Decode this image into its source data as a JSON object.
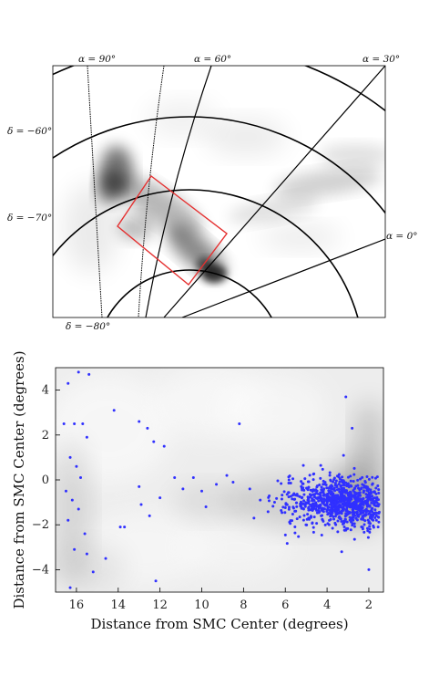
{
  "chart_data": [
    {
      "type": "map",
      "projection_labels": {
        "ra": [
          "α = 90°",
          "α = 60°",
          "α = 30°",
          "α = 0°"
        ],
        "dec": [
          "δ = −60°",
          "δ = −70°",
          "δ = −80°"
        ]
      },
      "colors": {
        "density": "#000000",
        "selection_box": "#e53030",
        "grid": "#000000"
      }
    },
    {
      "type": "scatter",
      "xlabel": "Distance from SMC Center (degrees)",
      "ylabel": "Distance from SMC Center (degrees)",
      "xlim": [
        17,
        1.3
      ],
      "ylim": [
        -5,
        5
      ],
      "x_inverted": true,
      "xticks": [
        16,
        14,
        12,
        10,
        8,
        6,
        4,
        2
      ],
      "yticks": [
        -4,
        -2,
        0,
        2,
        4
      ],
      "background": "grayscale density contours",
      "point_color": "#3030ff",
      "sparse_points": [
        [
          16.4,
          4.3
        ],
        [
          15.9,
          4.8
        ],
        [
          15.4,
          4.7
        ],
        [
          16.6,
          2.5
        ],
        [
          16.1,
          2.5
        ],
        [
          15.7,
          2.5
        ],
        [
          15.5,
          1.9
        ],
        [
          14.2,
          3.1
        ],
        [
          13.0,
          2.6
        ],
        [
          12.6,
          2.3
        ],
        [
          12.3,
          1.7
        ],
        [
          11.8,
          1.5
        ],
        [
          16.3,
          1.0
        ],
        [
          16.0,
          0.6
        ],
        [
          15.8,
          0.1
        ],
        [
          16.5,
          -0.5
        ],
        [
          16.2,
          -0.9
        ],
        [
          15.9,
          -1.3
        ],
        [
          16.4,
          -1.8
        ],
        [
          15.6,
          -2.4
        ],
        [
          16.1,
          -3.1
        ],
        [
          15.5,
          -3.3
        ],
        [
          16.3,
          -4.8
        ],
        [
          15.2,
          -4.1
        ],
        [
          13.9,
          -2.1
        ],
        [
          13.7,
          -2.1
        ],
        [
          13.0,
          -0.3
        ],
        [
          12.9,
          -1.1
        ],
        [
          12.5,
          -1.6
        ],
        [
          12.0,
          -0.8
        ],
        [
          11.3,
          0.1
        ],
        [
          10.9,
          -0.4
        ],
        [
          10.4,
          0.1
        ],
        [
          10.0,
          -0.5
        ],
        [
          9.8,
          -1.2
        ],
        [
          9.3,
          -0.2
        ],
        [
          8.8,
          0.2
        ],
        [
          8.5,
          -0.1
        ],
        [
          8.2,
          2.5
        ],
        [
          7.7,
          -0.4
        ],
        [
          7.2,
          -0.9
        ],
        [
          7.5,
          -1.7
        ],
        [
          12.2,
          -4.5
        ],
        [
          14.6,
          -3.5
        ],
        [
          3.1,
          3.7
        ],
        [
          2.8,
          2.3
        ],
        [
          3.3,
          -3.2
        ],
        [
          2.0,
          -4.0
        ]
      ],
      "dense_cluster": {
        "center": [
          3.5,
          -1.0
        ],
        "spread": [
          1.4,
          0.55
        ],
        "extent": [
          1.5,
          6.9
        ],
        "approx_points": 900
      }
    }
  ]
}
